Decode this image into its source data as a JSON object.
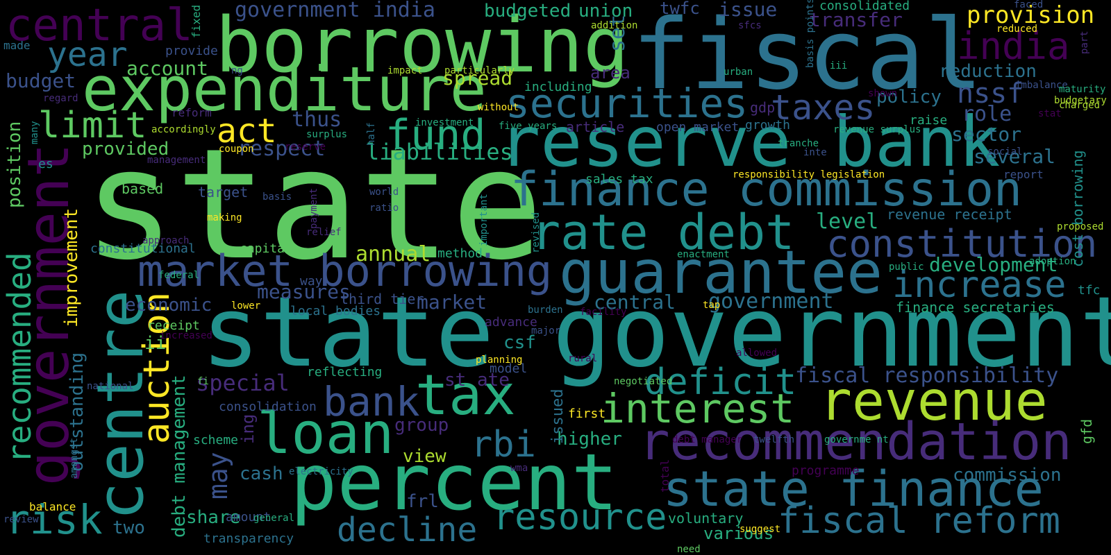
{
  "palette": [
    "#440154",
    "#472c7a",
    "#3b528b",
    "#2c728e",
    "#21918c",
    "#28ae80",
    "#5ec962",
    "#addc30",
    "#fde725"
  ],
  "words": [
    "state",
    "fiscal",
    "state government",
    "borrowing",
    "expenditure",
    "centre",
    "reserve bank",
    "percent",
    "government",
    "finance commission",
    "guarantee",
    "revenue",
    "market borrowing",
    "recommendation",
    "state finance",
    "loan",
    "tax",
    "central",
    "india",
    "rate debt",
    "constitution",
    "securities",
    "interest",
    "fiscal reform",
    "taxes",
    "deficit",
    "fund",
    "bank",
    "increase",
    "risk",
    "limit",
    "auction",
    "resource",
    "decline",
    "recommended",
    "act",
    "year",
    "fiscal responsibility",
    "provision",
    "nssf",
    "rbi",
    "liabilities",
    "annual",
    "special",
    "may",
    "government india",
    "budgeted",
    "union",
    "twfc",
    "issue",
    "transfer",
    "consolidated",
    "debt management",
    "account",
    "spread",
    "budget",
    "respect",
    "thus",
    "provided",
    "sector",
    "several",
    "role",
    "reduction",
    "policy",
    "market",
    "measures",
    "development",
    "central",
    "government",
    "level",
    "economic",
    "improvement",
    "position",
    "constitutional",
    "capital",
    "outstanding",
    "share",
    "cash",
    "group",
    "higher",
    "view",
    "st ate",
    "csf",
    "ii",
    "frl",
    "two",
    "commission",
    "finance secretaries",
    "revenue receipt",
    "voluntary",
    "various",
    "cost borrowing",
    "gfd",
    "reflecting",
    "model",
    "method",
    "third tier",
    "local bodies",
    "way",
    "receipt",
    "ing",
    "issued",
    "first",
    "planning",
    "advance",
    "scheme",
    "consolidation",
    "amongst",
    "balance",
    "amount",
    "transparency",
    "total",
    "programme",
    "debt manager",
    "twelfth",
    "governme nt",
    "wma",
    "negotiated",
    "electricity",
    "responsibility legislation",
    "sales tax",
    "open market",
    "growth",
    "article",
    "gdp",
    "raise",
    "report",
    "surplus",
    "revenue surplus",
    "tranche",
    "inte",
    "social",
    "set",
    "area",
    "including",
    "impact",
    "particularly",
    "addition",
    "urban",
    "iii",
    "basis points",
    "sfcs",
    "fixed",
    "made",
    "provide",
    "ng",
    "regard",
    "reform",
    "accordingly",
    "coupon",
    "es",
    "many",
    "management",
    "based",
    "target",
    "basis",
    "making",
    "payment",
    "relief",
    "approach",
    "federal",
    "lower",
    "increased",
    "national",
    "fi",
    "review",
    "general",
    "suggest",
    "need",
    "enactment",
    "public",
    "adoption",
    "proposed",
    "tfc",
    "tap",
    "burden",
    "facility",
    "major",
    "rural",
    "allowed",
    "world",
    "ratio",
    "half",
    "investment",
    "without",
    "five years",
    "reserve",
    "important",
    "revised",
    "shown",
    "imbalance",
    "stat",
    "maturity",
    "budgetary",
    "charged",
    "faced",
    "reduced",
    "part"
  ]
}
